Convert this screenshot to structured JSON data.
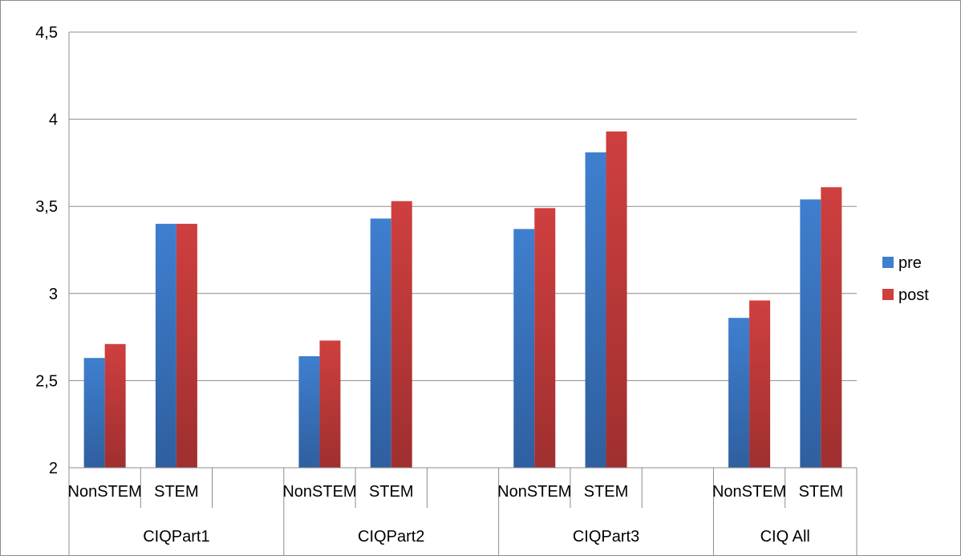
{
  "chart_data": {
    "type": "bar",
    "ylim": [
      2,
      4.5
    ],
    "y_ticks": [
      "2",
      "2,5",
      "3",
      "3,5",
      "4",
      "4,5"
    ],
    "y_tick_values": [
      2,
      2.5,
      3,
      3.5,
      4,
      4.5
    ],
    "grid": true,
    "legend_position": "right",
    "groups": [
      {
        "label": "CIQPart1",
        "subcategories": [
          "NonSTEM",
          "STEM",
          ""
        ]
      },
      {
        "label": "CIQPart2",
        "subcategories": [
          "NonSTEM",
          "STEM",
          ""
        ]
      },
      {
        "label": "CIQPart3",
        "subcategories": [
          "NonSTEM",
          "STEM",
          ""
        ]
      },
      {
        "label": "CIQ All",
        "subcategories": [
          "NonSTEM",
          "STEM"
        ]
      }
    ],
    "categories": [
      "CIQPart1 NonSTEM",
      "CIQPart1 STEM",
      "CIQPart1 (blank)",
      "CIQPart2 NonSTEM",
      "CIQPart2 STEM",
      "CIQPart2 (blank)",
      "CIQPart3 NonSTEM",
      "CIQPart3 STEM",
      "CIQPart3 (blank)",
      "CIQ All NonSTEM",
      "CIQ All STEM"
    ],
    "series": [
      {
        "name": "pre",
        "color": "#3f7fcf",
        "values": [
          2.63,
          3.4,
          null,
          2.64,
          3.43,
          null,
          3.37,
          3.81,
          null,
          2.86,
          3.54
        ]
      },
      {
        "name": "post",
        "color": "#cf3f3f",
        "values": [
          2.71,
          3.4,
          null,
          2.73,
          3.53,
          null,
          3.49,
          3.93,
          null,
          2.96,
          3.61
        ]
      }
    ],
    "colors": {
      "pre": "#3f7fcf",
      "post": "#cf3f3f",
      "grid": "#8c8c8c"
    }
  }
}
